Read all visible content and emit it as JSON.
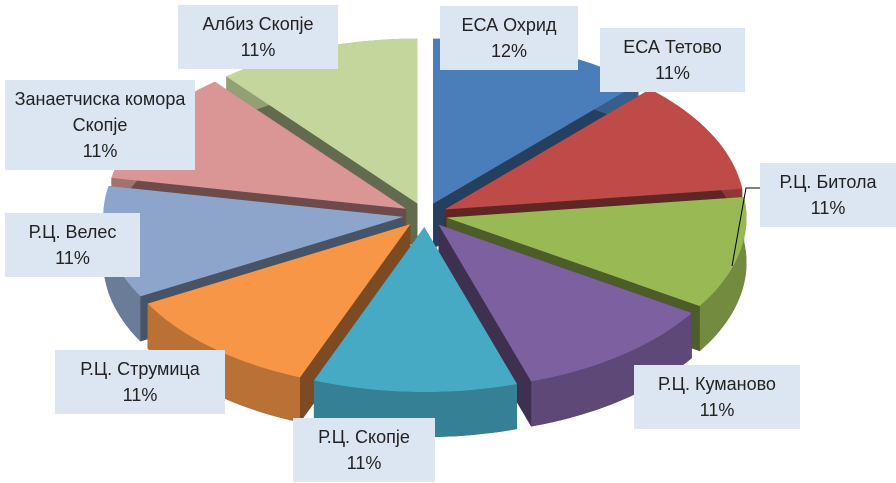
{
  "chart_data": {
    "type": "pie",
    "categories": [
      "ЕСА Охрид",
      "ЕСА Тетово",
      "Р.Ц. Битола",
      "Р.Ц. Куманово",
      "Р.Ц. Скопје",
      "Р.Ц. Струмица",
      "Р.Ц. Велес",
      "Занаетчиска комора Скопје",
      "Албиз Скопје"
    ],
    "values": [
      12,
      11,
      11,
      11,
      11,
      11,
      11,
      11,
      11
    ],
    "value_labels": [
      "12%",
      "11%",
      "11%",
      "11%",
      "11%",
      "11%",
      "11%",
      "11%",
      "11%"
    ],
    "colors": [
      "#4a7ebb",
      "#be4b48",
      "#98b954",
      "#7d60a0",
      "#46aac5",
      "#f79646",
      "#8ea5cb",
      "#d99694",
      "#c3d69b"
    ],
    "three_d": true,
    "exploded": true
  }
}
